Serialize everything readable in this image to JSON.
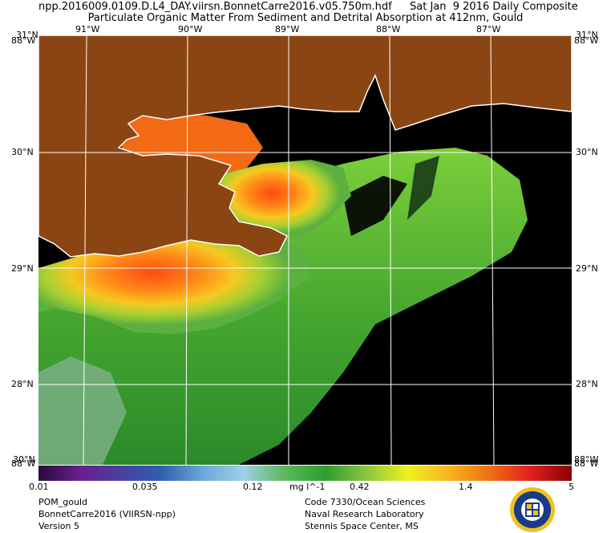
{
  "header": {
    "filename": "npp.2016009.0109.D.L4_DAY.viirsn.BonnetCarre2016.v05.750m.hdf",
    "date_line": "Sat Jan  9 2016 Daily Composite",
    "title": "Particulate Organic Matter From Sediment and Detrital Absorption at 412nm, Gould"
  },
  "map": {
    "top_lon_labels": [
      "91°W",
      "90°W",
      "89°W",
      "88°W",
      "87°W"
    ],
    "lat_labels": [
      "30°N",
      "29°N",
      "28°N"
    ],
    "corners": {
      "top_left_lat": "31°N",
      "top_left_lon": "88°W",
      "top_right_lat": "31°N",
      "top_right_lon": "88°W",
      "bottom_left_lat": "30°N",
      "bottom_left_lon": "88°W",
      "bottom_right_lat": "88°W",
      "bottom_right_lon": "88°W"
    },
    "colors": {
      "land": "#8b4513",
      "no_data": "#000000",
      "coast": "#ffffff",
      "grid": "#ffffff"
    }
  },
  "colorbar": {
    "ticks": [
      "0.01",
      "0.035",
      "0.12",
      "0.42",
      "1.4",
      "5"
    ],
    "units": "mg l^-1",
    "scale": "log",
    "range": [
      0.01,
      5
    ],
    "palette": [
      "#2a0a3a",
      "#6a1f8f",
      "#4a3fa0",
      "#3060b0",
      "#6aa8d8",
      "#9fd0e8",
      "#5cb85c",
      "#2e9e2e",
      "#8cc63f",
      "#f0f020",
      "#f7b520",
      "#f07010",
      "#e02020",
      "#8b0000"
    ]
  },
  "footer": {
    "left": [
      "POM_gould",
      "BonnetCarre2016 (VIIRSN-npp)",
      "Version 5"
    ],
    "right": [
      "Code 7330/Ocean Sciences",
      "Naval Research Laboratory",
      "Stennis Space Center, MS"
    ],
    "seal_icon": "navy-research-laboratory-seal-icon"
  }
}
